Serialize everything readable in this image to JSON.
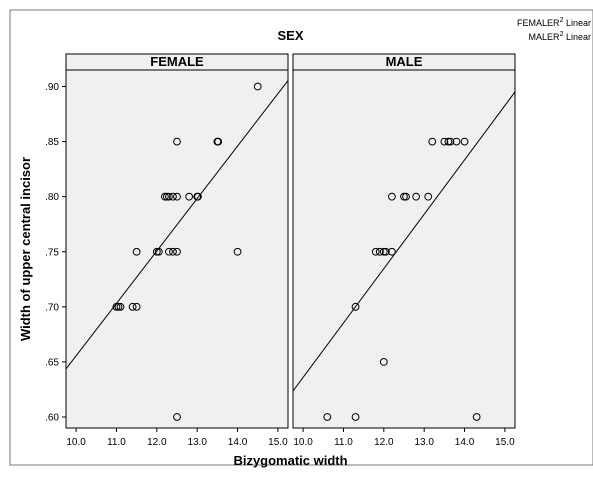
{
  "chart_data": {
    "type": "scatter",
    "title": "SEX",
    "xlabel": "Bizygomatic width",
    "ylabel": "Width of upper central incisor",
    "xlim": [
      9.75,
      15.25
    ],
    "ylim": [
      0.59,
      0.915
    ],
    "xticks": [
      "10.0",
      "11.0",
      "12.0",
      "13.0",
      "14.0",
      "15.0"
    ],
    "yticks": [
      ".60",
      ".65",
      ".70",
      ".75",
      ".80",
      ".85",
      ".90"
    ],
    "legend": {
      "placement": "top-right",
      "entries": [
        {
          "prefix": "FEMALE",
          "sup": "2",
          "suffix": " Linear"
        },
        {
          "prefix": "MALE",
          "sup": "2",
          "suffix": " Linear"
        }
      ]
    },
    "grid": false,
    "panels": [
      {
        "name": "FEMALE",
        "points": [
          [
            11.0,
            0.7
          ],
          [
            11.05,
            0.7
          ],
          [
            11.1,
            0.7
          ],
          [
            11.4,
            0.7
          ],
          [
            11.5,
            0.7
          ],
          [
            11.5,
            0.75
          ],
          [
            12.0,
            0.75
          ],
          [
            12.05,
            0.75
          ],
          [
            12.3,
            0.75
          ],
          [
            12.4,
            0.75
          ],
          [
            12.5,
            0.75
          ],
          [
            14.0,
            0.75
          ],
          [
            12.2,
            0.8
          ],
          [
            12.25,
            0.8
          ],
          [
            12.3,
            0.8
          ],
          [
            12.4,
            0.8
          ],
          [
            12.5,
            0.8
          ],
          [
            12.8,
            0.8
          ],
          [
            13.0,
            0.8
          ],
          [
            13.02,
            0.8
          ],
          [
            12.5,
            0.85
          ],
          [
            13.5,
            0.85
          ],
          [
            13.52,
            0.85
          ],
          [
            14.5,
            0.9
          ],
          [
            12.5,
            0.6
          ]
        ],
        "fit_line": {
          "x": [
            9.75,
            15.25
          ],
          "y": [
            0.6436,
            0.9054
          ]
        }
      },
      {
        "name": "MALE",
        "points": [
          [
            10.6,
            0.6
          ],
          [
            11.3,
            0.6
          ],
          [
            14.3,
            0.6
          ],
          [
            12.0,
            0.65
          ],
          [
            11.3,
            0.7
          ],
          [
            11.8,
            0.75
          ],
          [
            11.9,
            0.75
          ],
          [
            12.0,
            0.75
          ],
          [
            12.05,
            0.75
          ],
          [
            12.2,
            0.75
          ],
          [
            12.2,
            0.8
          ],
          [
            12.5,
            0.8
          ],
          [
            12.55,
            0.8
          ],
          [
            12.8,
            0.8
          ],
          [
            13.1,
            0.8
          ],
          [
            13.2,
            0.85
          ],
          [
            13.5,
            0.85
          ],
          [
            13.6,
            0.85
          ],
          [
            13.65,
            0.85
          ],
          [
            13.8,
            0.85
          ],
          [
            14.0,
            0.85
          ]
        ],
        "fit_line": {
          "x": [
            9.75,
            15.25
          ],
          "y": [
            0.6236,
            0.8951
          ]
        }
      }
    ]
  }
}
